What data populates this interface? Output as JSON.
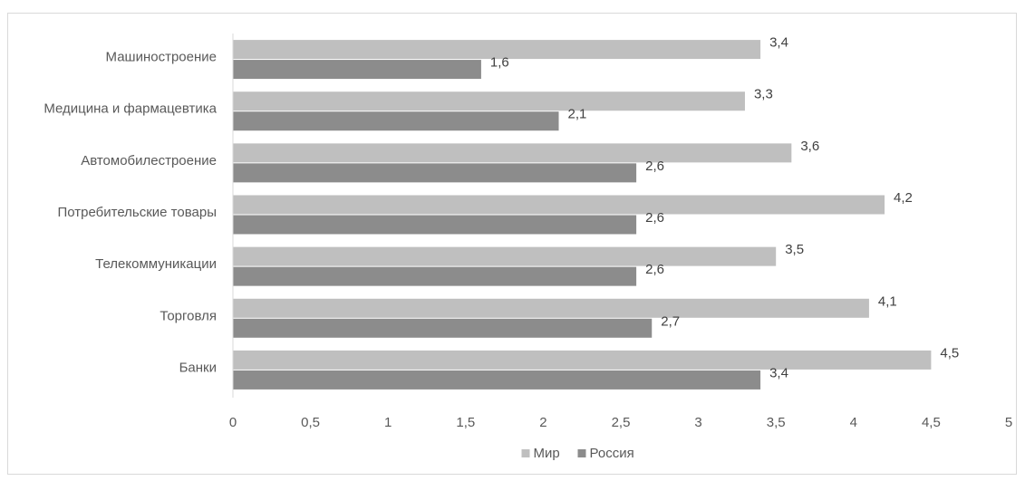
{
  "chart_data": {
    "type": "bar",
    "orientation": "horizontal",
    "categories": [
      "Машиностроение",
      "Медицина и фармацевтика",
      "Автомобилестроение",
      "Потребительские товары",
      "Телекоммуникации",
      "Торговля",
      "Банки"
    ],
    "series": [
      {
        "name": "Мир",
        "values": [
          3.4,
          3.3,
          3.6,
          4.2,
          3.5,
          4.1,
          4.5
        ],
        "labels": [
          "3,4",
          "3,3",
          "3,6",
          "4,2",
          "3,5",
          "4,1",
          "4,5"
        ],
        "color": "#bfbfbf"
      },
      {
        "name": "Россия",
        "values": [
          1.6,
          2.1,
          2.6,
          2.6,
          2.6,
          2.7,
          3.4
        ],
        "labels": [
          "1,6",
          "2,1",
          "2,6",
          "2,6",
          "2,6",
          "2,7",
          "3,4"
        ],
        "color": "#8c8c8c"
      }
    ],
    "xlim": [
      0,
      5
    ],
    "x_ticks": [
      0,
      0.5,
      1,
      1.5,
      2,
      2.5,
      3,
      3.5,
      4,
      4.5,
      5
    ],
    "x_tick_labels": [
      "0",
      "0,5",
      "1",
      "1,5",
      "2",
      "2,5",
      "3",
      "3,5",
      "4",
      "4,5",
      "5"
    ],
    "title": "",
    "xlabel": "",
    "ylabel": "",
    "grid": false,
    "legend_position": "bottom"
  }
}
